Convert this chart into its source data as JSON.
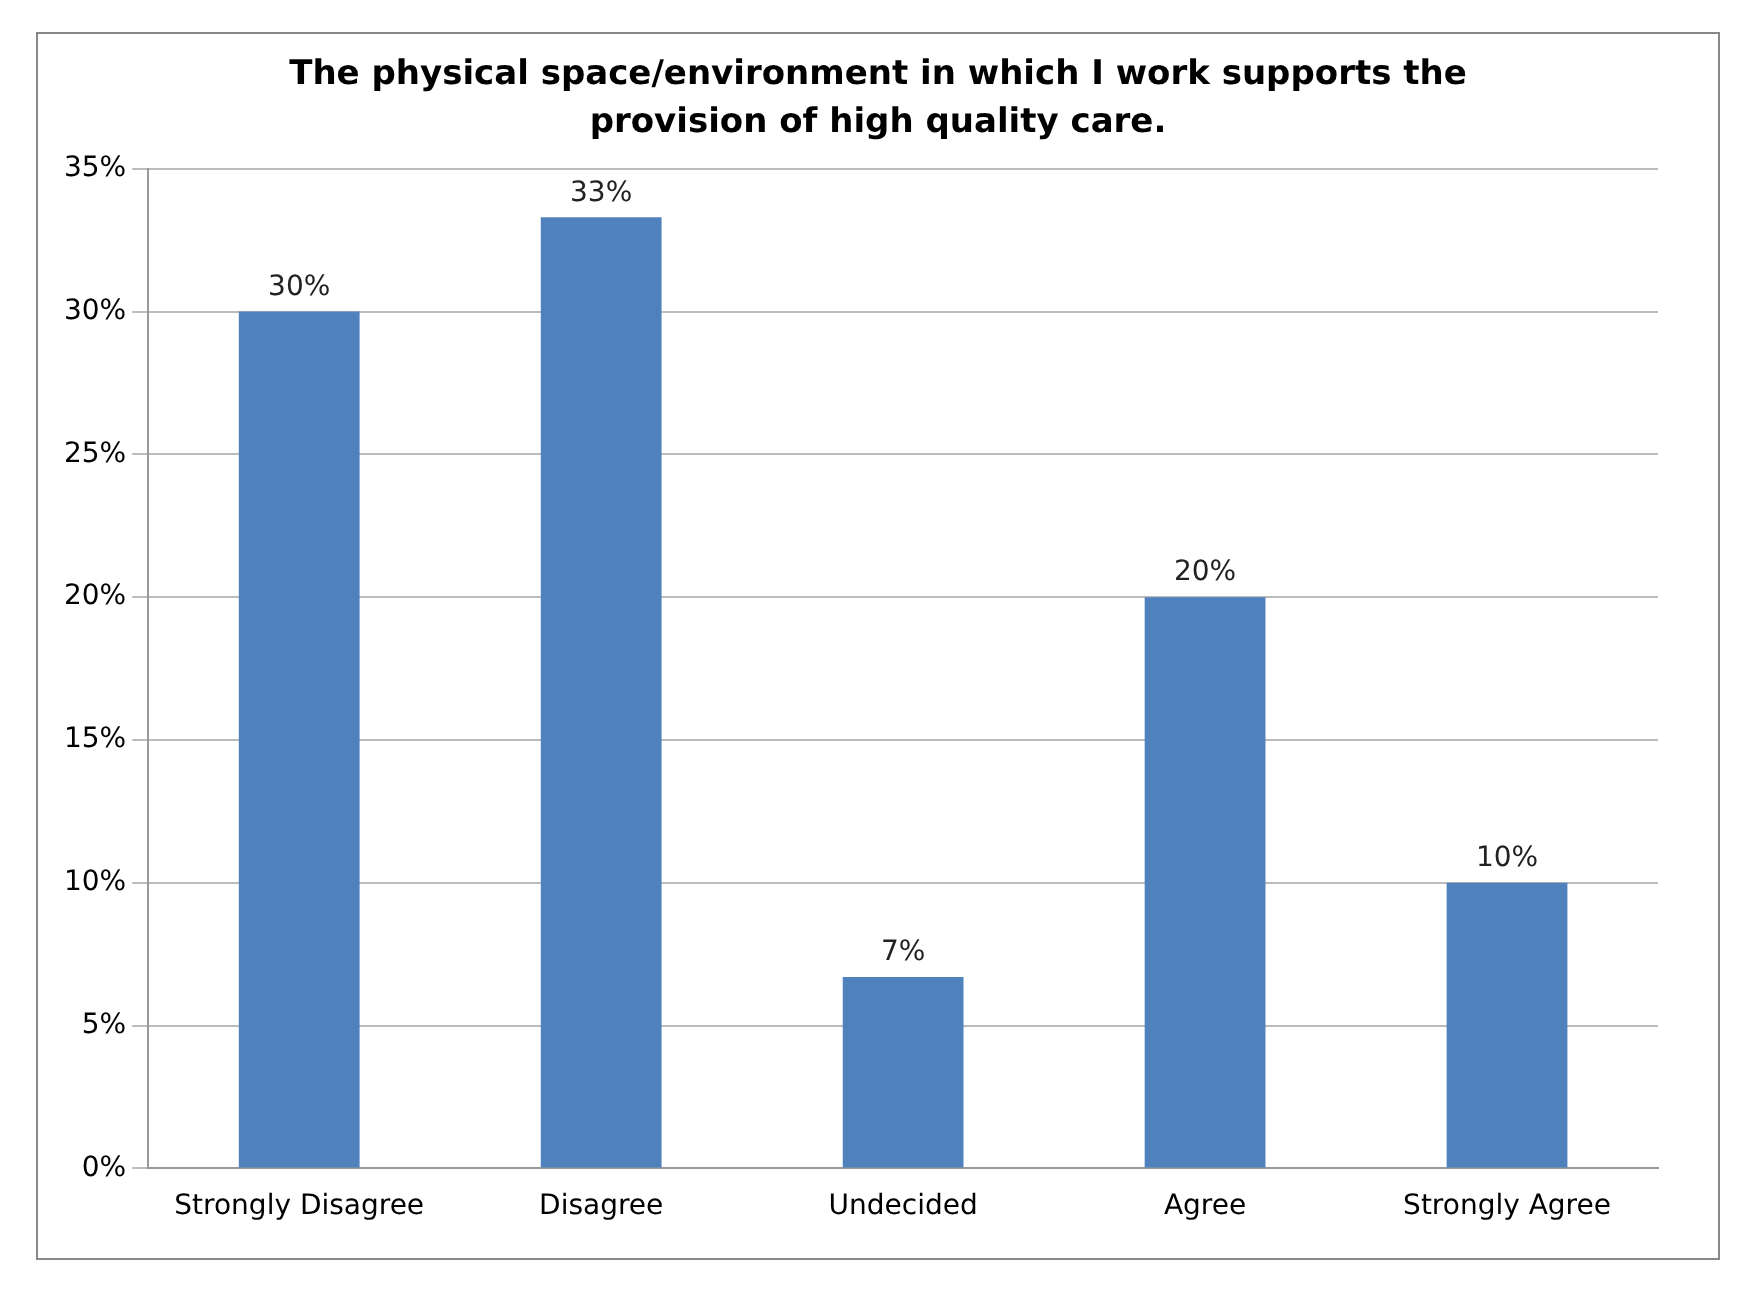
{
  "chart_data": {
    "type": "bar",
    "title": "The physical space/environment in which I work supports the provision of high quality care.",
    "categories": [
      "Strongly Disagree",
      "Disagree",
      "Undecided",
      "Agree",
      "Strongly Agree"
    ],
    "values": [
      30,
      33.3,
      6.7,
      20,
      10
    ],
    "value_labels": [
      "30%",
      "33%",
      "7%",
      "20%",
      "10%"
    ],
    "color": "#4f81bd",
    "ylim": [
      0,
      35
    ],
    "yticks": [
      {
        "value": 0,
        "label": "0%"
      },
      {
        "value": 5,
        "label": "5%"
      },
      {
        "value": 10,
        "label": "10%"
      },
      {
        "value": 15,
        "label": "15%"
      },
      {
        "value": 20,
        "label": "20%"
      },
      {
        "value": 25,
        "label": "25%"
      },
      {
        "value": 30,
        "label": "30%"
      },
      {
        "value": 35,
        "label": "35%"
      }
    ],
    "grid": "y",
    "legend": false
  }
}
